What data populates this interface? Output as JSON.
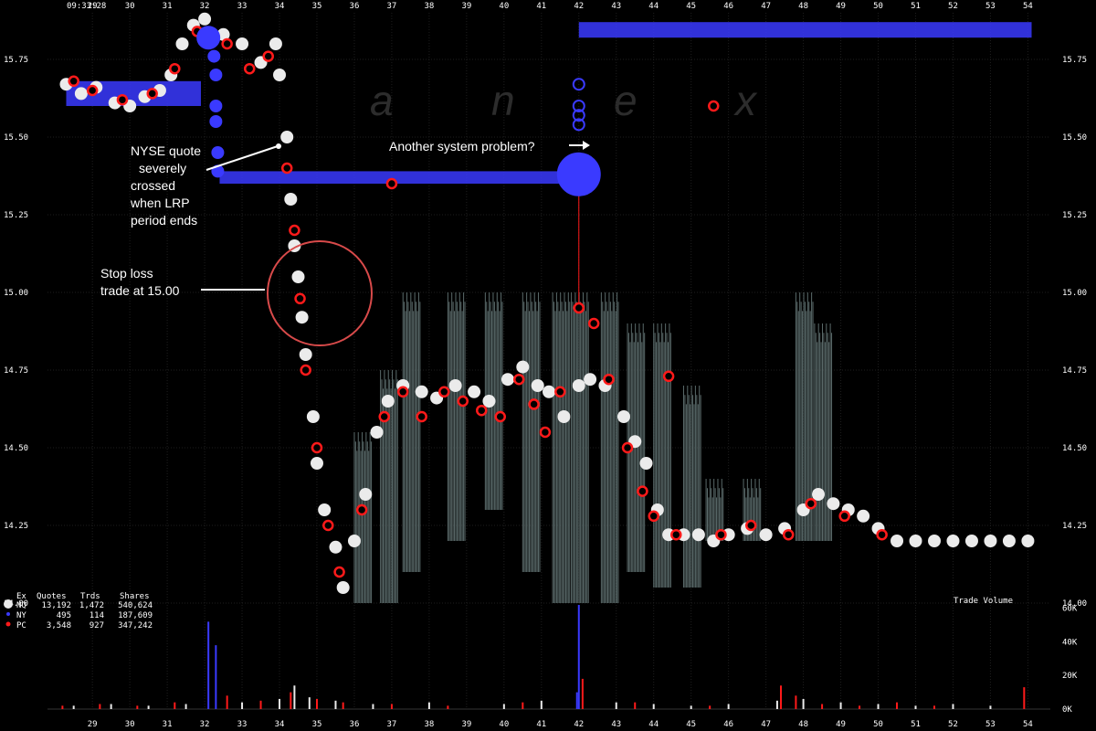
{
  "timestamp": "09:33:28",
  "watermark": [
    "a",
    "n",
    "e",
    "x"
  ],
  "chart_data": {
    "type": "scatter",
    "x_ticks": [
      "29",
      "30",
      "31",
      "32",
      "33",
      "34",
      "35",
      "36",
      "37",
      "38",
      "39",
      "40",
      "41",
      "42",
      "43",
      "44",
      "45",
      "46",
      "47",
      "48",
      "49",
      "50",
      "51",
      "52",
      "53",
      "54"
    ],
    "y_ticks": [
      "14.00",
      "14.25",
      "14.50",
      "14.75",
      "15.00",
      "15.25",
      "15.50",
      "15.75"
    ],
    "ylim": [
      14.0,
      15.9
    ],
    "xlim": [
      27.8,
      54.6
    ],
    "volume_label": "Trade Volume",
    "volume_ticks": [
      "0K",
      "20K",
      "40K",
      "60K"
    ],
    "volume_ylim": [
      0,
      62
    ],
    "colors": {
      "NQ": "#ebebeb",
      "NY": "#3a3aff",
      "PC": "#ff1a1a",
      "nbbo": "#5a6a6a"
    },
    "series": [
      {
        "name": "NQ",
        "quotes": "13,192",
        "trades": "1,472",
        "shares": "540,624",
        "points": [
          [
            28.3,
            15.67
          ],
          [
            28.7,
            15.64
          ],
          [
            29.1,
            15.66
          ],
          [
            29.6,
            15.61
          ],
          [
            30,
            15.6
          ],
          [
            30.4,
            15.63
          ],
          [
            30.8,
            15.65
          ],
          [
            31.1,
            15.7
          ],
          [
            31.4,
            15.8
          ],
          [
            31.7,
            15.86
          ],
          [
            32,
            15.88
          ],
          [
            32.5,
            15.83
          ],
          [
            33,
            15.8
          ],
          [
            33.5,
            15.74
          ],
          [
            33.9,
            15.8
          ],
          [
            34,
            15.7
          ],
          [
            34.2,
            15.5
          ],
          [
            34.3,
            15.3
          ],
          [
            34.4,
            15.15
          ],
          [
            34.5,
            15.05
          ],
          [
            34.6,
            14.92
          ],
          [
            34.7,
            14.8
          ],
          [
            34.9,
            14.6
          ],
          [
            35,
            14.45
          ],
          [
            35.2,
            14.3
          ],
          [
            35.5,
            14.18
          ],
          [
            35.7,
            14.05
          ],
          [
            36,
            14.2
          ],
          [
            36.3,
            14.35
          ],
          [
            36.6,
            14.55
          ],
          [
            36.9,
            14.65
          ],
          [
            37.3,
            14.7
          ],
          [
            37.8,
            14.68
          ],
          [
            38.2,
            14.66
          ],
          [
            38.7,
            14.7
          ],
          [
            39.2,
            14.68
          ],
          [
            39.6,
            14.65
          ],
          [
            40.1,
            14.72
          ],
          [
            40.5,
            14.76
          ],
          [
            40.9,
            14.7
          ],
          [
            41.2,
            14.68
          ],
          [
            41.6,
            14.6
          ],
          [
            42,
            14.7
          ],
          [
            42.3,
            14.72
          ],
          [
            42.7,
            14.7
          ],
          [
            43.2,
            14.6
          ],
          [
            43.5,
            14.52
          ],
          [
            43.8,
            14.45
          ],
          [
            44.1,
            14.3
          ],
          [
            44.4,
            14.22
          ],
          [
            44.8,
            14.22
          ],
          [
            45.2,
            14.22
          ],
          [
            45.6,
            14.2
          ],
          [
            46,
            14.22
          ],
          [
            46.5,
            14.24
          ],
          [
            47,
            14.22
          ],
          [
            47.5,
            14.24
          ],
          [
            48,
            14.3
          ],
          [
            48.4,
            14.35
          ],
          [
            48.8,
            14.32
          ],
          [
            49.2,
            14.3
          ],
          [
            49.6,
            14.28
          ],
          [
            50,
            14.24
          ],
          [
            50.5,
            14.2
          ],
          [
            51,
            14.2
          ],
          [
            51.5,
            14.2
          ],
          [
            52,
            14.2
          ],
          [
            52.5,
            14.2
          ],
          [
            53,
            14.2
          ],
          [
            53.5,
            14.2
          ],
          [
            54,
            14.2
          ]
        ]
      },
      {
        "name": "NY",
        "quotes": "495",
        "trades": "114",
        "shares": "187,609",
        "points": [
          [
            32.1,
            15.82
          ],
          [
            32.25,
            15.76
          ],
          [
            32.3,
            15.7
          ],
          [
            32.3,
            15.6
          ],
          [
            32.3,
            15.55
          ],
          [
            32.35,
            15.45
          ],
          [
            32.35,
            15.39
          ],
          [
            42,
            15.67
          ],
          [
            42,
            15.6
          ],
          [
            42,
            15.57
          ],
          [
            42,
            15.54
          ],
          [
            42,
            15.38
          ]
        ]
      },
      {
        "name": "PC",
        "quotes": "3,548",
        "trades": "927",
        "shares": "347,242",
        "points": [
          [
            28.5,
            15.68
          ],
          [
            29,
            15.65
          ],
          [
            29.8,
            15.62
          ],
          [
            30.6,
            15.64
          ],
          [
            31.2,
            15.72
          ],
          [
            31.8,
            15.84
          ],
          [
            32.6,
            15.8
          ],
          [
            33.2,
            15.72
          ],
          [
            33.7,
            15.76
          ],
          [
            34.2,
            15.4
          ],
          [
            34.4,
            15.2
          ],
          [
            34.55,
            14.98
          ],
          [
            34.7,
            14.75
          ],
          [
            35,
            14.5
          ],
          [
            35.3,
            14.25
          ],
          [
            35.6,
            14.1
          ],
          [
            36.2,
            14.3
          ],
          [
            36.8,
            14.6
          ],
          [
            37.3,
            14.68
          ],
          [
            37.8,
            14.6
          ],
          [
            38.4,
            14.68
          ],
          [
            38.9,
            14.65
          ],
          [
            39.4,
            14.62
          ],
          [
            39.9,
            14.6
          ],
          [
            40.4,
            14.72
          ],
          [
            40.8,
            14.64
          ],
          [
            41.1,
            14.55
          ],
          [
            41.5,
            14.68
          ],
          [
            42,
            14.95
          ],
          [
            42.4,
            14.9
          ],
          [
            42.8,
            14.72
          ],
          [
            43.3,
            14.5
          ],
          [
            43.7,
            14.36
          ],
          [
            44,
            14.28
          ],
          [
            44.6,
            14.22
          ],
          [
            45.8,
            14.22
          ],
          [
            46.6,
            14.25
          ],
          [
            47.6,
            14.22
          ],
          [
            48.2,
            14.32
          ],
          [
            49.1,
            14.28
          ],
          [
            50.1,
            14.22
          ],
          [
            45.6,
            15.6
          ],
          [
            44.4,
            14.73
          ],
          [
            37,
            15.35
          ]
        ]
      }
    ],
    "nbbo_lines": [
      {
        "name": "NY",
        "segments": [
          [
            28.3,
            15.6,
            31.9,
            15.68
          ],
          [
            32.4,
            15.35,
            42,
            15.39
          ],
          [
            42,
            15.82,
            54.1,
            15.87
          ]
        ]
      }
    ],
    "volume": {
      "NQ": [
        [
          28.5,
          2
        ],
        [
          29.5,
          3
        ],
        [
          30.5,
          2
        ],
        [
          31.5,
          3
        ],
        [
          33,
          4
        ],
        [
          34,
          6
        ],
        [
          34.4,
          14
        ],
        [
          34.8,
          7
        ],
        [
          35.5,
          5
        ],
        [
          36.5,
          3
        ],
        [
          38,
          4
        ],
        [
          40,
          3
        ],
        [
          41,
          5
        ],
        [
          43,
          4
        ],
        [
          44,
          3
        ],
        [
          45,
          2
        ],
        [
          46,
          3
        ],
        [
          47.3,
          5
        ],
        [
          48,
          6
        ],
        [
          49,
          4
        ],
        [
          50,
          3
        ],
        [
          51,
          2
        ],
        [
          52,
          3
        ],
        [
          53,
          2
        ]
      ],
      "NY": [
        [
          32.1,
          52
        ],
        [
          32.3,
          38
        ],
        [
          42,
          62
        ],
        [
          41.95,
          10
        ]
      ],
      "PC": [
        [
          28.2,
          2
        ],
        [
          29.2,
          3
        ],
        [
          30.2,
          2
        ],
        [
          31.2,
          4
        ],
        [
          32.6,
          8
        ],
        [
          33.5,
          5
        ],
        [
          34.3,
          10
        ],
        [
          35,
          6
        ],
        [
          35.7,
          4
        ],
        [
          37,
          3
        ],
        [
          38.5,
          2
        ],
        [
          40.5,
          4
        ],
        [
          42.1,
          18
        ],
        [
          43.5,
          4
        ],
        [
          45.5,
          2
        ],
        [
          47.4,
          14
        ],
        [
          47.8,
          8
        ],
        [
          48.5,
          3
        ],
        [
          49.5,
          2
        ],
        [
          50.5,
          4
        ],
        [
          51.5,
          2
        ],
        [
          53.9,
          13
        ]
      ]
    }
  },
  "annotations": {
    "nyse_quote": [
      "NYSE quote",
      "severely",
      "crossed",
      "when LRP",
      "period ends"
    ],
    "system_problem": "Another system problem?",
    "stop_loss": [
      "Stop loss",
      "trade at 15.00"
    ]
  },
  "stats_header": {
    "ex": "Ex",
    "quotes": "Quotes",
    "trades": "Trds",
    "shares": "Shares"
  }
}
